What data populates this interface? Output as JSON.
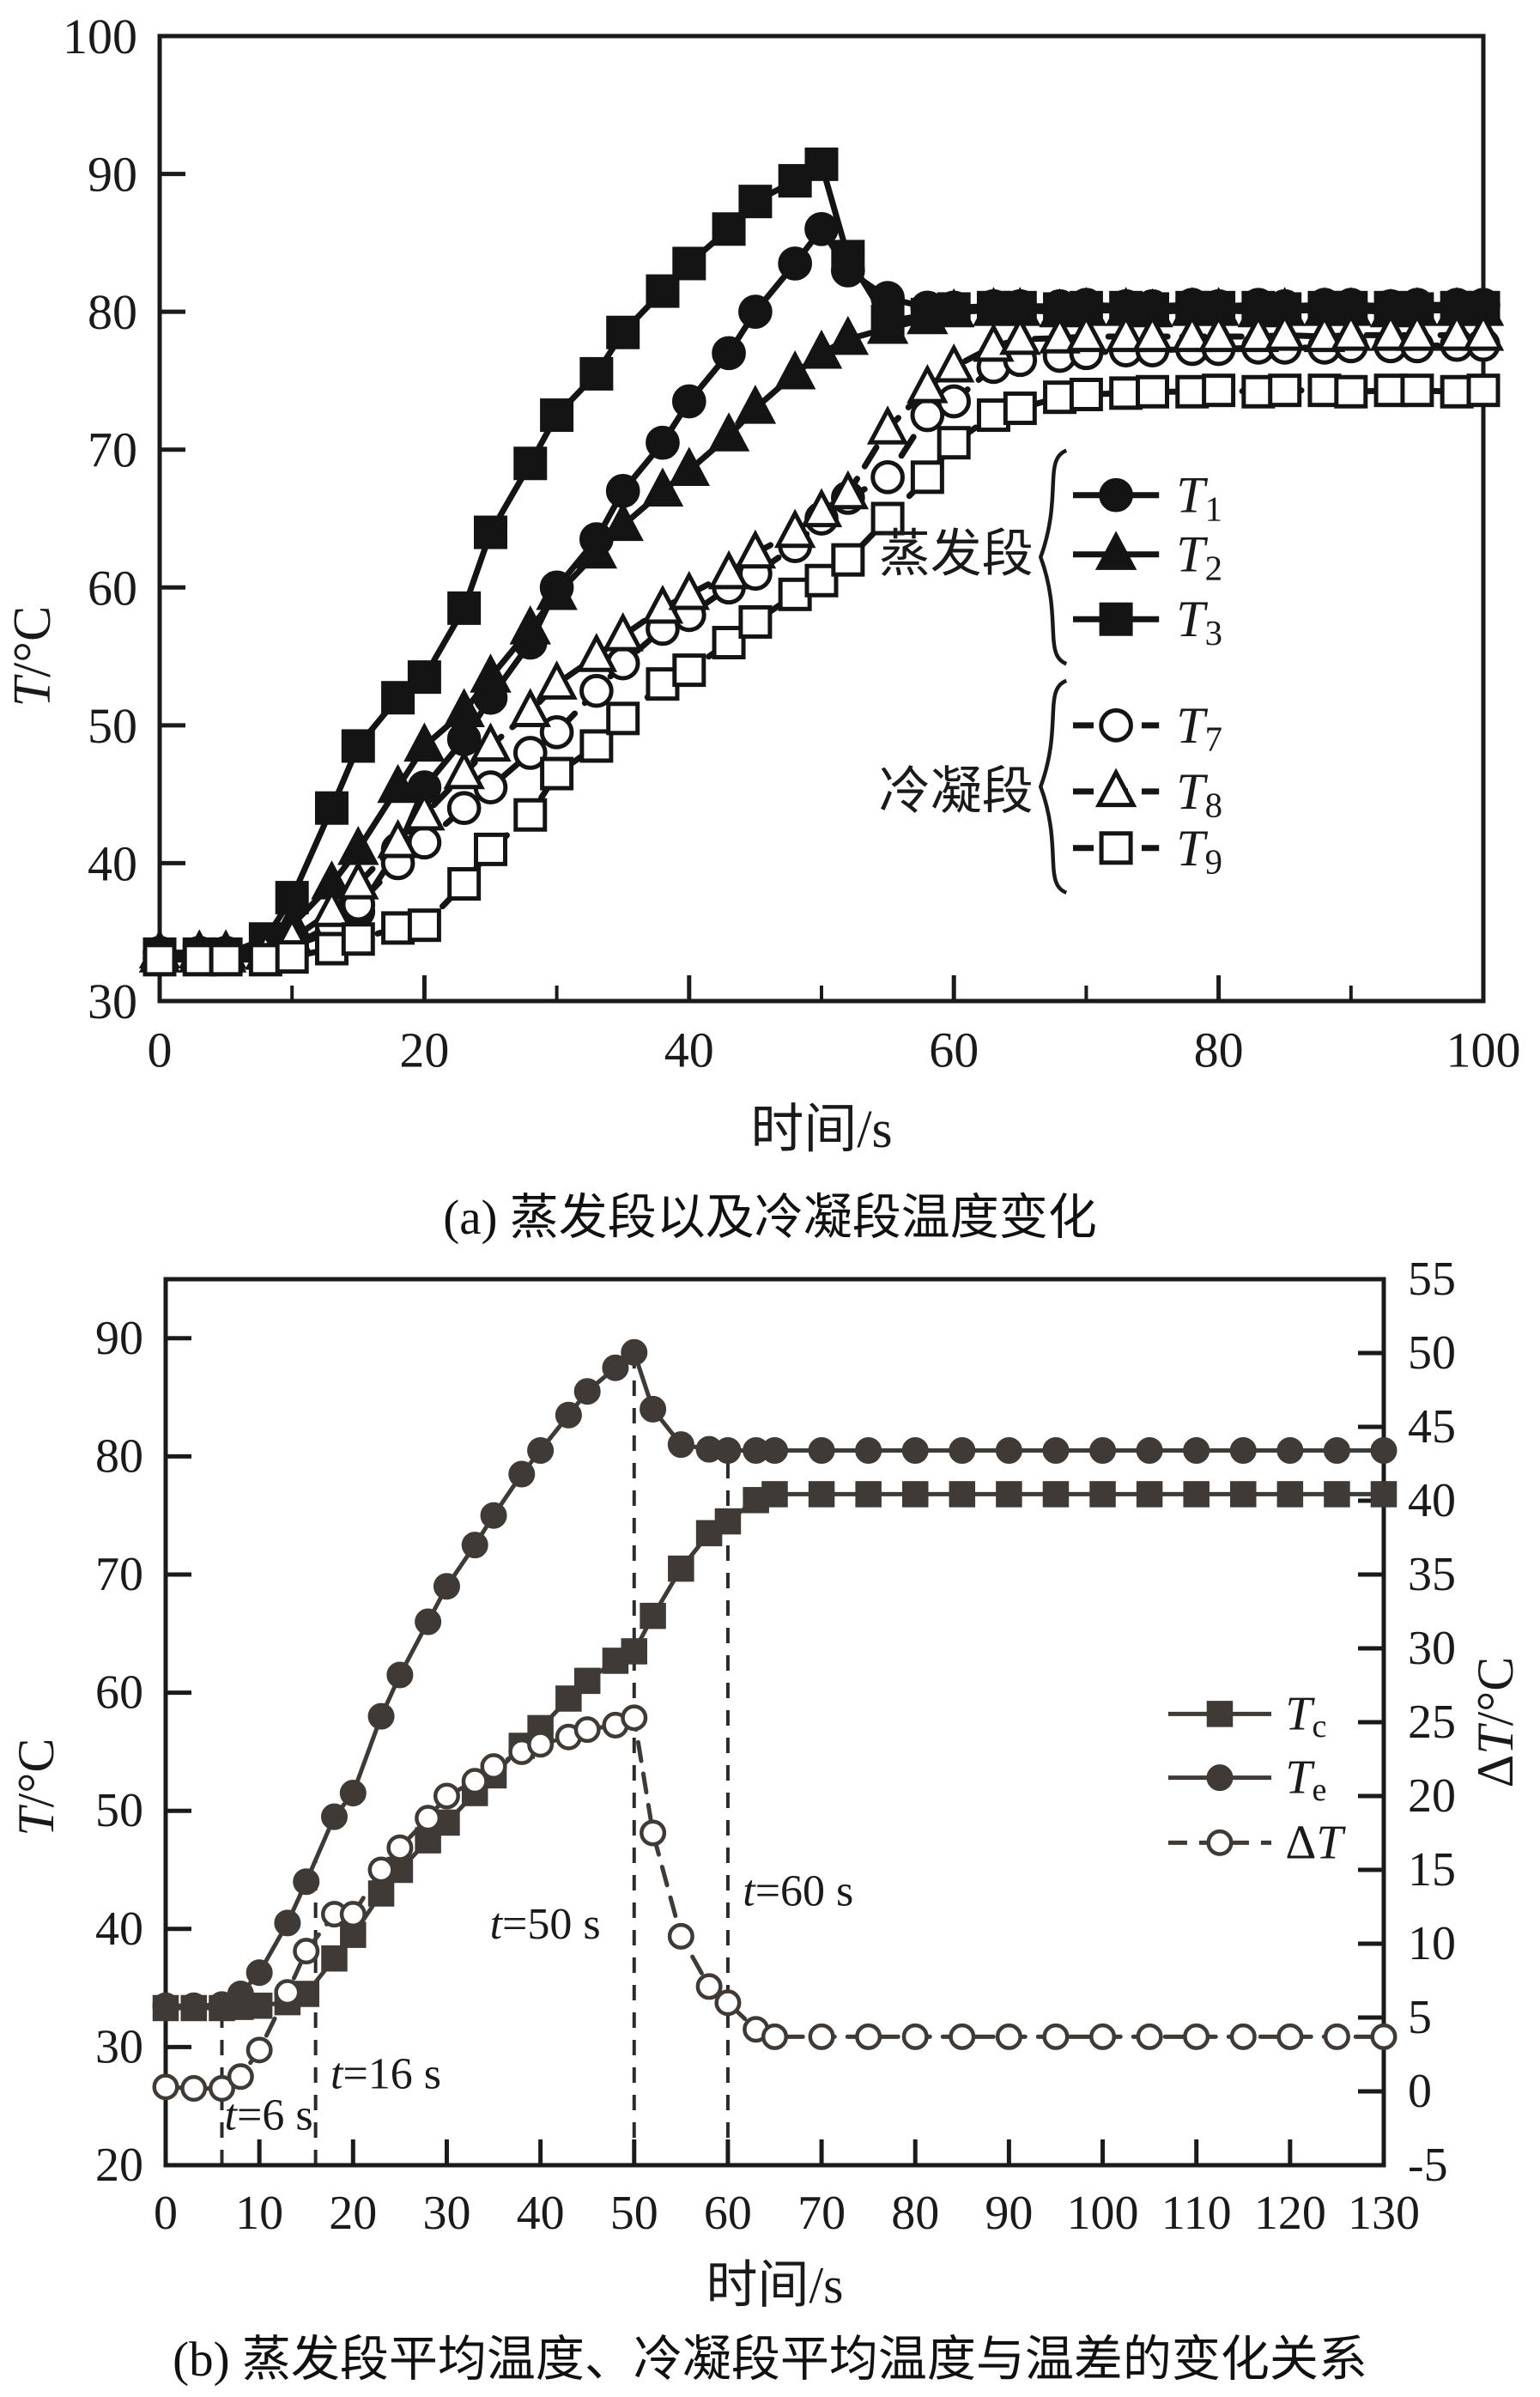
{
  "colors": {
    "panel_a": "#141414",
    "panel_b": "#3f3a36",
    "text": "#1a1a1a",
    "background": "#ffffff"
  },
  "captions": {
    "a": "(a) 蒸发段以及冷凝段温度变化",
    "b": "(b) 蒸发段平均温度、冷凝段平均温度与温差的变化关系"
  },
  "chart_data": [
    {
      "id": "a",
      "type": "line",
      "title": "",
      "xlabel": "时间/s",
      "ylabel": "T/°C",
      "xlabel_runs": [
        {
          "t": "时间/s"
        }
      ],
      "ylabel_runs": [
        {
          "t": "T",
          "i": 1
        },
        {
          "t": "/°C"
        }
      ],
      "xlim": [
        0,
        100
      ],
      "xticks": [
        0,
        20,
        40,
        60,
        80,
        100
      ],
      "xminor": [
        10,
        30,
        50,
        70,
        90
      ],
      "ylim": [
        30,
        100
      ],
      "yticks": [
        30,
        40,
        50,
        60,
        70,
        80,
        90,
        100
      ],
      "grid": false,
      "legend_position": "center-right",
      "color": "#141414",
      "x": [
        0,
        3,
        5,
        8,
        10,
        13,
        15,
        18,
        20,
        23,
        25,
        28,
        30,
        33,
        35,
        38,
        40,
        43,
        45,
        48,
        50,
        52,
        55,
        58,
        60,
        63,
        65,
        68,
        70,
        73,
        75,
        78,
        80,
        83,
        85,
        88,
        90,
        93,
        95,
        98,
        100
      ],
      "series": [
        {
          "key": "T1",
          "zone": "蒸发段",
          "marker": "circle",
          "filled": true,
          "dash": "solid",
          "label_runs": [
            {
              "t": "T",
              "i": 1
            },
            {
              "t": "1",
              "s": 1
            }
          ],
          "values": [
            33.5,
            33.5,
            33.5,
            33.6,
            34.0,
            35.0,
            36.5,
            41.0,
            45.5,
            49.0,
            52.0,
            56.0,
            60.0,
            63.5,
            67.0,
            70.5,
            73.5,
            77.0,
            80.0,
            83.5,
            86.0,
            83.0,
            81.0,
            80.3,
            80.3,
            80.4,
            80.4,
            80.4,
            80.5,
            80.4,
            80.4,
            80.5,
            80.4,
            80.5,
            80.4,
            80.5,
            80.5,
            80.4,
            80.5,
            80.5,
            80.5
          ]
        },
        {
          "key": "T2",
          "zone": "蒸发段",
          "marker": "triangle",
          "filled": true,
          "dash": "solid",
          "label_runs": [
            {
              "t": "T",
              "i": 1
            },
            {
              "t": "2",
              "s": 1
            }
          ],
          "values": [
            33.5,
            33.5,
            33.5,
            34.0,
            35.5,
            38.5,
            41.0,
            45.5,
            48.5,
            51.0,
            53.5,
            57.0,
            59.5,
            62.5,
            64.5,
            67.0,
            68.5,
            71.0,
            73.0,
            75.5,
            77.0,
            78.0,
            78.8,
            79.5,
            80.0,
            80.1,
            80.1,
            80.0,
            80.1,
            80.1,
            80.0,
            80.1,
            80.1,
            80.0,
            80.1,
            80.1,
            80.1,
            80.0,
            80.1,
            80.1,
            80.1
          ]
        },
        {
          "key": "T3",
          "zone": "蒸发段",
          "marker": "square",
          "filled": true,
          "dash": "solid",
          "label_runs": [
            {
              "t": "T",
              "i": 1
            },
            {
              "t": "3",
              "s": 1
            }
          ],
          "values": [
            33.4,
            33.4,
            33.4,
            34.5,
            37.5,
            44.0,
            48.5,
            52.0,
            53.5,
            58.5,
            64.0,
            69.0,
            72.5,
            75.5,
            78.5,
            81.5,
            83.5,
            86.0,
            88.0,
            89.5,
            90.7,
            84.0,
            79.3,
            79.8,
            80.2,
            80.3,
            80.3,
            80.2,
            80.3,
            80.3,
            80.2,
            80.3,
            80.3,
            80.3,
            80.2,
            80.3,
            80.3,
            80.3,
            80.2,
            80.3,
            80.3
          ]
        },
        {
          "key": "T7",
          "zone": "冷凝段",
          "marker": "circle",
          "filled": false,
          "dash": "dashed",
          "label_runs": [
            {
              "t": "T",
              "i": 1
            },
            {
              "t": "7",
              "s": 1
            }
          ],
          "values": [
            33.1,
            33.1,
            33.1,
            33.2,
            34.0,
            35.5,
            37.0,
            40.0,
            41.5,
            44.0,
            45.5,
            48.0,
            49.5,
            52.5,
            54.5,
            57.0,
            58.0,
            60.0,
            61.0,
            63.0,
            65.0,
            66.5,
            68.0,
            72.5,
            73.5,
            76.0,
            76.5,
            76.8,
            77.0,
            77.2,
            77.2,
            77.3,
            77.3,
            77.4,
            77.4,
            77.4,
            77.5,
            77.5,
            77.5,
            77.6,
            77.6
          ]
        },
        {
          "key": "T8",
          "zone": "冷凝段",
          "marker": "triangle",
          "filled": false,
          "dash": "dashed",
          "label_runs": [
            {
              "t": "T",
              "i": 1
            },
            {
              "t": "8",
              "s": 1
            }
          ],
          "values": [
            33.2,
            33.2,
            33.2,
            33.4,
            34.5,
            36.5,
            38.5,
            41.5,
            43.5,
            46.5,
            48.5,
            51.0,
            53.0,
            55.0,
            56.5,
            58.5,
            59.5,
            61.0,
            62.5,
            64.0,
            65.5,
            66.8,
            71.5,
            74.5,
            76.0,
            77.5,
            78.0,
            78.1,
            78.2,
            78.2,
            78.2,
            78.2,
            78.2,
            78.2,
            78.3,
            78.2,
            78.3,
            78.3,
            78.3,
            78.3,
            78.3
          ]
        },
        {
          "key": "T9",
          "zone": "冷凝段",
          "marker": "square",
          "filled": false,
          "dash": "dashed",
          "label_runs": [
            {
              "t": "T",
              "i": 1
            },
            {
              "t": "9",
              "s": 1
            }
          ],
          "values": [
            33.0,
            33.0,
            33.0,
            33.0,
            33.2,
            33.8,
            34.5,
            35.3,
            35.5,
            38.5,
            41.0,
            43.5,
            46.5,
            48.5,
            50.5,
            53.0,
            54.0,
            56.0,
            57.5,
            59.5,
            60.5,
            62.0,
            65.0,
            68.0,
            70.5,
            72.5,
            73.0,
            73.8,
            74.0,
            74.1,
            74.2,
            74.2,
            74.3,
            74.2,
            74.3,
            74.3,
            74.2,
            74.3,
            74.3,
            74.2,
            74.3
          ]
        }
      ],
      "legend_groups": [
        {
          "label": "蒸发段",
          "series": [
            "T1",
            "T2",
            "T3"
          ],
          "rows_T": [
            66.7,
            62.4,
            57.7
          ],
          "label_T": 62.4
        },
        {
          "label": "冷凝段",
          "series": [
            "T7",
            "T8",
            "T9"
          ],
          "rows_T": [
            50.0,
            45.2,
            41.1
          ],
          "label_T": 45.2
        }
      ],
      "legend_geom": {
        "line_x0": 69,
        "line_x1": 75.5,
        "label_x": 76.8,
        "group_label_x": 66,
        "brace_x": 68.5
      }
    },
    {
      "id": "b",
      "type": "line",
      "title": "",
      "xlabel": "时间/s",
      "ylabel": "T/°C",
      "y2label": "ΔT/°C",
      "xlabel_runs": [
        {
          "t": "时间/s"
        }
      ],
      "ylabel_runs": [
        {
          "t": "T",
          "i": 1
        },
        {
          "t": "/°C"
        }
      ],
      "y2label_runs": [
        {
          "t": "Δ"
        },
        {
          "t": "T",
          "i": 1
        },
        {
          "t": "/°C"
        }
      ],
      "xlim": [
        0,
        130
      ],
      "xticks": [
        0,
        10,
        20,
        30,
        40,
        50,
        60,
        70,
        80,
        90,
        100,
        110,
        120,
        130
      ],
      "ylim": [
        20,
        95
      ],
      "yticks": [
        20,
        30,
        40,
        50,
        60,
        70,
        80,
        90
      ],
      "y2lim": [
        -5,
        55
      ],
      "y2ticks": [
        -5,
        0,
        5,
        10,
        15,
        20,
        25,
        30,
        35,
        40,
        45,
        50,
        55
      ],
      "grid": false,
      "legend_position": "center-right",
      "color": "#3f3a36",
      "x": [
        0,
        3,
        6,
        8,
        10,
        13,
        15,
        18,
        20,
        23,
        25,
        28,
        30,
        33,
        35,
        38,
        40,
        43,
        45,
        48,
        50,
        52,
        55,
        58,
        60,
        63,
        65,
        70,
        75,
        80,
        85,
        90,
        95,
        100,
        105,
        110,
        115,
        120,
        125,
        130
      ],
      "series": [
        {
          "key": "Tc",
          "marker": "square",
          "filled": true,
          "dash": "solid",
          "axis": "y",
          "label_runs": [
            {
              "t": "T",
              "i": 1
            },
            {
              "t": "c",
              "s": 1
            }
          ],
          "values": [
            33.3,
            33.3,
            33.3,
            33.4,
            33.5,
            33.8,
            34.5,
            37.5,
            39.5,
            43.0,
            45.0,
            47.5,
            49.0,
            51.5,
            53.0,
            55.5,
            57.0,
            59.5,
            61.0,
            62.7,
            63.5,
            66.5,
            70.5,
            73.5,
            74.5,
            76.3,
            76.8,
            76.8,
            76.8,
            76.8,
            76.8,
            76.8,
            76.8,
            76.8,
            76.8,
            76.8,
            76.8,
            76.8,
            76.8,
            76.8
          ]
        },
        {
          "key": "Te",
          "marker": "circle",
          "filled": true,
          "dash": "solid",
          "axis": "y",
          "label_runs": [
            {
              "t": "T",
              "i": 1
            },
            {
              "t": "e",
              "s": 1
            }
          ],
          "values": [
            33.5,
            33.5,
            33.6,
            34.5,
            36.3,
            40.5,
            44.0,
            49.5,
            51.5,
            58.0,
            61.5,
            66.0,
            69.0,
            72.5,
            75.0,
            78.5,
            80.5,
            83.5,
            85.5,
            87.5,
            88.8,
            84.0,
            81.0,
            80.6,
            80.5,
            80.5,
            80.5,
            80.5,
            80.5,
            80.5,
            80.5,
            80.5,
            80.5,
            80.5,
            80.5,
            80.5,
            80.5,
            80.5,
            80.5,
            80.5
          ]
        },
        {
          "key": "dT",
          "marker": "circle",
          "filled": false,
          "dash": "dashed",
          "axis": "y2",
          "label_runs": [
            {
              "t": "Δ"
            },
            {
              "t": "T",
              "i": 1
            }
          ],
          "values": [
            0.3,
            0.2,
            0.2,
            1.0,
            2.8,
            6.7,
            9.5,
            12.0,
            12.0,
            15.0,
            16.5,
            18.5,
            20.0,
            21.0,
            22.0,
            23.0,
            23.5,
            24.0,
            24.5,
            24.8,
            25.3,
            17.5,
            10.5,
            7.1,
            6.0,
            4.2,
            3.7,
            3.7,
            3.7,
            3.7,
            3.7,
            3.7,
            3.7,
            3.7,
            3.7,
            3.7,
            3.7,
            3.7,
            3.7,
            3.7
          ]
        }
      ],
      "legend_rows": [
        {
          "series": "Tc",
          "T": 58.2
        },
        {
          "series": "Te",
          "T": 52.8
        },
        {
          "series": "dT",
          "T": 47.3
        }
      ],
      "legend_geom": {
        "line_x0": 107,
        "line_x1": 118,
        "label_x": 119.5
      },
      "annotations": {
        "vlines": [
          {
            "x": 6,
            "top": 33.6
          },
          {
            "x": 16,
            "top": 46.0
          },
          {
            "x": 50,
            "top": 88.8
          },
          {
            "x": 60,
            "top": 80.5
          }
        ],
        "labels": [
          {
            "text": "t=6 s",
            "runs": [
              {
                "t": "t",
                "i": 1
              },
              {
                "t": "=6 s"
              }
            ],
            "x": 11,
            "y": 23.0
          },
          {
            "text": "t=16 s",
            "runs": [
              {
                "t": "t",
                "i": 1
              },
              {
                "t": "=16 s"
              }
            ],
            "x": 23.5,
            "y": 26.5
          },
          {
            "text": "t=50 s",
            "runs": [
              {
                "t": "t",
                "i": 1
              },
              {
                "t": "=50 s"
              }
            ],
            "x": 40.5,
            "y": 39.2
          },
          {
            "text": "t=60 s",
            "runs": [
              {
                "t": "t",
                "i": 1
              },
              {
                "t": "=60 s"
              }
            ],
            "x": 67.5,
            "y": 42.0
          }
        ]
      }
    }
  ]
}
